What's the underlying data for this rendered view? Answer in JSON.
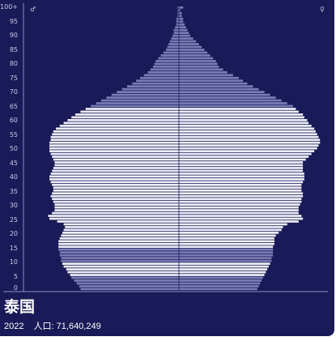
{
  "header": {
    "male_symbol": "♂",
    "female_symbol": "♀"
  },
  "footer": {
    "country": "泰国",
    "year": "2022",
    "population_label": "人口: 71,640,249"
  },
  "colors": {
    "background": "#1a1a58",
    "bar_light": "#ededf7",
    "bar_dark": "#7b7bb5",
    "axis": "#8a8cbf"
  },
  "chart_data": {
    "type": "bar",
    "orientation": "horizontal-pyramid",
    "y_ticks": [
      "0",
      "5",
      "10",
      "15",
      "20",
      "25",
      "30",
      "35",
      "40",
      "45",
      "50",
      "55",
      "60",
      "65",
      "70",
      "75",
      "80",
      "85",
      "90",
      "95",
      "100+"
    ],
    "age_groups": [
      "0",
      "1",
      "2",
      "3",
      "4",
      "5",
      "6",
      "7",
      "8",
      "9",
      "10",
      "11",
      "12",
      "13",
      "14",
      "15",
      "16",
      "17",
      "18",
      "19",
      "20",
      "21",
      "22",
      "23",
      "24",
      "25",
      "26",
      "27",
      "28",
      "29",
      "30",
      "31",
      "32",
      "33",
      "34",
      "35",
      "36",
      "37",
      "38",
      "39",
      "40",
      "41",
      "42",
      "43",
      "44",
      "45",
      "46",
      "47",
      "48",
      "49",
      "50",
      "51",
      "52",
      "53",
      "54",
      "55",
      "56",
      "57",
      "58",
      "59",
      "60",
      "61",
      "62",
      "63",
      "64",
      "65",
      "66",
      "67",
      "68",
      "69",
      "70",
      "71",
      "72",
      "73",
      "74",
      "75",
      "76",
      "77",
      "78",
      "79",
      "80",
      "81",
      "82",
      "83",
      "84",
      "85",
      "86",
      "87",
      "88",
      "89",
      "90",
      "91",
      "92",
      "93",
      "94",
      "95",
      "96",
      "97",
      "98",
      "99",
      "100+"
    ],
    "series": [
      {
        "name": "♂",
        "values": [
          0.76,
          0.77,
          0.79,
          0.81,
          0.83,
          0.84,
          0.86,
          0.87,
          0.89,
          0.9,
          0.91,
          0.91,
          0.92,
          0.92,
          0.93,
          0.93,
          0.93,
          0.93,
          0.92,
          0.91,
          0.9,
          0.89,
          0.88,
          0.89,
          0.94,
          1.0,
          1.01,
          0.98,
          0.96,
          0.96,
          0.96,
          0.97,
          0.98,
          0.99,
          0.98,
          0.97,
          0.97,
          0.98,
          0.99,
          1.0,
          1.0,
          0.99,
          0.98,
          0.97,
          0.96,
          0.96,
          0.97,
          0.98,
          0.99,
          1.0,
          1.0,
          1.0,
          1.0,
          0.99,
          0.99,
          0.98,
          0.97,
          0.95,
          0.92,
          0.89,
          0.86,
          0.83,
          0.8,
          0.76,
          0.72,
          0.68,
          0.64,
          0.6,
          0.56,
          0.52,
          0.48,
          0.44,
          0.4,
          0.36,
          0.33,
          0.3,
          0.27,
          0.24,
          0.22,
          0.2,
          0.19,
          0.18,
          0.16,
          0.14,
          0.12,
          0.1,
          0.09,
          0.08,
          0.07,
          0.06,
          0.05,
          0.04,
          0.04,
          0.03,
          0.02,
          0.02,
          0.02,
          0.01,
          0.01,
          0.01,
          0.01
        ]
      },
      {
        "name": "♀",
        "values": [
          0.55,
          0.56,
          0.57,
          0.58,
          0.59,
          0.6,
          0.61,
          0.62,
          0.63,
          0.64,
          0.65,
          0.65,
          0.66,
          0.66,
          0.66,
          0.66,
          0.67,
          0.67,
          0.67,
          0.68,
          0.7,
          0.72,
          0.73,
          0.76,
          0.84,
          0.87,
          0.86,
          0.84,
          0.84,
          0.84,
          0.85,
          0.86,
          0.86,
          0.87,
          0.87,
          0.86,
          0.86,
          0.86,
          0.87,
          0.88,
          0.88,
          0.88,
          0.87,
          0.87,
          0.87,
          0.87,
          0.89,
          0.91,
          0.93,
          0.95,
          0.97,
          0.98,
          0.99,
          0.99,
          0.98,
          0.97,
          0.96,
          0.95,
          0.93,
          0.91,
          0.9,
          0.88,
          0.87,
          0.84,
          0.82,
          0.8,
          0.76,
          0.72,
          0.68,
          0.64,
          0.6,
          0.56,
          0.52,
          0.48,
          0.45,
          0.42,
          0.38,
          0.34,
          0.31,
          0.28,
          0.27,
          0.26,
          0.24,
          0.22,
          0.2,
          0.18,
          0.16,
          0.14,
          0.12,
          0.1,
          0.08,
          0.07,
          0.06,
          0.05,
          0.04,
          0.03,
          0.03,
          0.02,
          0.02,
          0.01,
          0.03
        ]
      }
    ],
    "xlim": [
      -1,
      1
    ],
    "xlabel": "",
    "ylabel": "",
    "grid": false
  }
}
